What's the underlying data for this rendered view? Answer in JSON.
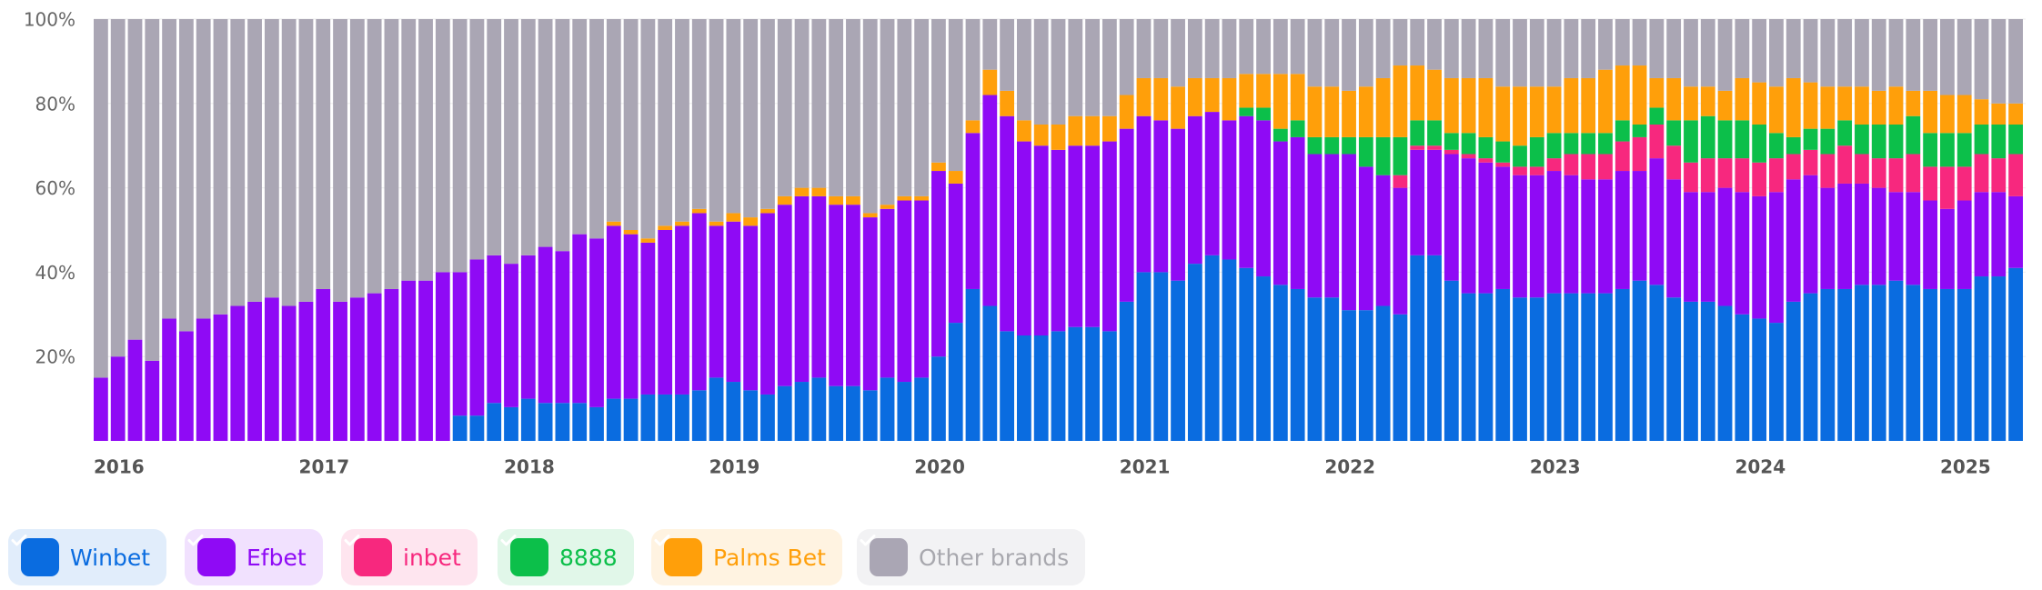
{
  "chart_data": {
    "type": "stacked_bar",
    "categories": [
      "2016",
      null,
      null,
      null,
      null,
      null,
      null,
      null,
      null,
      null,
      null,
      null,
      "2017",
      null,
      null,
      null,
      null,
      null,
      null,
      null,
      null,
      null,
      null,
      null,
      "2018",
      null,
      null,
      null,
      null,
      null,
      null,
      null,
      null,
      null,
      null,
      null,
      "2019",
      null,
      null,
      null,
      null,
      null,
      null,
      null,
      null,
      null,
      null,
      null,
      "2020",
      null,
      null,
      null,
      null,
      null,
      null,
      null,
      null,
      null,
      null,
      null,
      "2021",
      null,
      null,
      null,
      null,
      null,
      null,
      null,
      null,
      null,
      null,
      null,
      "2022",
      null,
      null,
      null,
      null,
      null,
      null,
      null,
      null,
      null,
      null,
      null,
      "2023",
      null,
      null,
      null,
      null,
      null,
      null,
      null,
      null,
      null,
      null,
      null,
      "2024",
      null,
      null,
      null,
      null,
      null,
      null,
      null,
      null,
      null,
      null,
      null,
      "2025",
      null,
      null,
      null,
      null
    ],
    "ylim": [
      0,
      100
    ],
    "yticks": [
      {
        "value": 20,
        "label": "20%"
      },
      {
        "value": 40,
        "label": "40%"
      },
      {
        "value": 60,
        "label": "60%"
      },
      {
        "value": 80,
        "label": "80%"
      },
      {
        "value": 100,
        "label": "100%"
      }
    ],
    "grid": true,
    "series": [
      {
        "name": "Winbet",
        "color": "#0a6ce0",
        "values": [
          0,
          0,
          0,
          0,
          0,
          0,
          0,
          0,
          0,
          0,
          0,
          0,
          0,
          0,
          0,
          0,
          0,
          0,
          0,
          0,
          0,
          6,
          6,
          9,
          8,
          10,
          9,
          9,
          9,
          8,
          10,
          10,
          11,
          11,
          11,
          12,
          15,
          14,
          12,
          11,
          13,
          14,
          15,
          13,
          13,
          12,
          15,
          14,
          15,
          20,
          28,
          36,
          32,
          26,
          25,
          25,
          26,
          27,
          27,
          26,
          33,
          40,
          40,
          38,
          42,
          44,
          43,
          41,
          39,
          37,
          36,
          34,
          34,
          31,
          31,
          32,
          30,
          44,
          44,
          38,
          35,
          35,
          36,
          34,
          34,
          35,
          35,
          35,
          35,
          36,
          38,
          37,
          34,
          33,
          33,
          32,
          30,
          29,
          28,
          33,
          35,
          36,
          36,
          37,
          37,
          38,
          37,
          36,
          36,
          36,
          39,
          39,
          41
        ]
      },
      {
        "name": "Efbet",
        "color": "#8f0af5",
        "values": [
          15,
          20,
          24,
          19,
          29,
          26,
          29,
          30,
          32,
          33,
          34,
          32,
          33,
          36,
          33,
          34,
          35,
          36,
          38,
          38,
          40,
          34,
          37,
          35,
          34,
          34,
          37,
          36,
          40,
          40,
          41,
          39,
          36,
          39,
          40,
          42,
          36,
          38,
          39,
          43,
          43,
          44,
          43,
          43,
          43,
          41,
          40,
          43,
          42,
          44,
          33,
          37,
          50,
          51,
          46,
          45,
          43,
          43,
          43,
          45,
          41,
          37,
          36,
          36,
          35,
          34,
          33,
          36,
          37,
          34,
          36,
          34,
          34,
          37,
          34,
          31,
          30,
          25,
          25,
          30,
          32,
          31,
          29,
          29,
          29,
          29,
          28,
          27,
          27,
          28,
          26,
          30,
          28,
          26,
          26,
          28,
          29,
          29,
          31,
          29,
          28,
          24,
          25,
          24,
          23,
          21,
          22,
          21,
          19,
          21,
          20,
          20,
          17
        ]
      },
      {
        "name": "inbet",
        "color": "#f7287e",
        "values": [
          0,
          0,
          0,
          0,
          0,
          0,
          0,
          0,
          0,
          0,
          0,
          0,
          0,
          0,
          0,
          0,
          0,
          0,
          0,
          0,
          0,
          0,
          0,
          0,
          0,
          0,
          0,
          0,
          0,
          0,
          0,
          0,
          0,
          0,
          0,
          0,
          0,
          0,
          0,
          0,
          0,
          0,
          0,
          0,
          0,
          0,
          0,
          0,
          0,
          0,
          0,
          0,
          0,
          0,
          0,
          0,
          0,
          0,
          0,
          0,
          0,
          0,
          0,
          0,
          0,
          0,
          0,
          0,
          0,
          0,
          0,
          0,
          0,
          0,
          0,
          0,
          3,
          1,
          1,
          1,
          1,
          1,
          1,
          2,
          2,
          3,
          5,
          6,
          6,
          7,
          8,
          8,
          8,
          7,
          8,
          7,
          8,
          8,
          8,
          6,
          6,
          8,
          9,
          7,
          7,
          8,
          9,
          8,
          10,
          8,
          9,
          8,
          10
        ]
      },
      {
        "name": "8888",
        "color": "#0cbf4a",
        "values": [
          0,
          0,
          0,
          0,
          0,
          0,
          0,
          0,
          0,
          0,
          0,
          0,
          0,
          0,
          0,
          0,
          0,
          0,
          0,
          0,
          0,
          0,
          0,
          0,
          0,
          0,
          0,
          0,
          0,
          0,
          0,
          0,
          0,
          0,
          0,
          0,
          0,
          0,
          0,
          0,
          0,
          0,
          0,
          0,
          0,
          0,
          0,
          0,
          0,
          0,
          0,
          0,
          0,
          0,
          0,
          0,
          0,
          0,
          0,
          0,
          0,
          0,
          0,
          0,
          0,
          0,
          0,
          2,
          3,
          3,
          4,
          4,
          4,
          4,
          7,
          9,
          9,
          6,
          6,
          4,
          5,
          5,
          5,
          5,
          7,
          6,
          5,
          5,
          5,
          5,
          3,
          4,
          6,
          10,
          10,
          9,
          9,
          9,
          6,
          4,
          5,
          6,
          6,
          7,
          8,
          8,
          9,
          8,
          8,
          8,
          7,
          8,
          7
        ]
      },
      {
        "name": "Palms Bet",
        "color": "#ff9f0a",
        "values": [
          0,
          0,
          0,
          0,
          0,
          0,
          0,
          0,
          0,
          0,
          0,
          0,
          0,
          0,
          0,
          0,
          0,
          0,
          0,
          0,
          0,
          0,
          0,
          0,
          0,
          0,
          0,
          0,
          0,
          0,
          1,
          1,
          1,
          1,
          1,
          1,
          1,
          2,
          2,
          1,
          2,
          2,
          2,
          2,
          2,
          1,
          1,
          1,
          1,
          2,
          3,
          3,
          6,
          6,
          5,
          5,
          6,
          7,
          7,
          6,
          8,
          9,
          10,
          10,
          9,
          8,
          10,
          8,
          8,
          13,
          11,
          12,
          12,
          11,
          12,
          14,
          17,
          13,
          12,
          13,
          13,
          14,
          13,
          14,
          12,
          11,
          13,
          13,
          15,
          13,
          14,
          7,
          10,
          8,
          7,
          7,
          10,
          10,
          11,
          14,
          11,
          10,
          8,
          9,
          8,
          9,
          6,
          10,
          9,
          9,
          6,
          5,
          5
        ]
      },
      {
        "name": "Other brands",
        "color": "#aaa6b4",
        "values": [
          85,
          80,
          76,
          81,
          71,
          74,
          71,
          70,
          68,
          67,
          66,
          68,
          67,
          64,
          67,
          66,
          65,
          64,
          62,
          62,
          60,
          60,
          57,
          56,
          58,
          56,
          54,
          55,
          51,
          52,
          48,
          50,
          52,
          49,
          48,
          45,
          48,
          46,
          47,
          45,
          42,
          40,
          40,
          42,
          42,
          46,
          44,
          42,
          42,
          34,
          36,
          24,
          12,
          17,
          24,
          25,
          25,
          23,
          23,
          23,
          18,
          14,
          14,
          16,
          14,
          14,
          14,
          13,
          13,
          13,
          13,
          16,
          16,
          17,
          16,
          14,
          11,
          11,
          12,
          14,
          14,
          14,
          16,
          16,
          16,
          16,
          14,
          14,
          12,
          11,
          11,
          14,
          14,
          16,
          16,
          17,
          14,
          15,
          16,
          14,
          15,
          16,
          16,
          16,
          17,
          16,
          17,
          17,
          18,
          18,
          19,
          20,
          20
        ]
      }
    ]
  }
}
